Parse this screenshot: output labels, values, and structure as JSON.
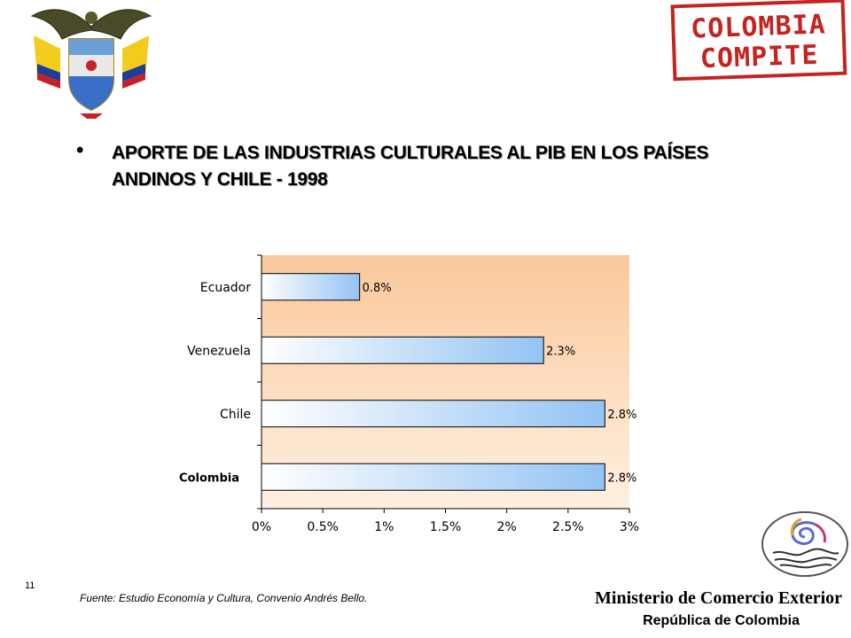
{
  "header": {
    "bullet": "•",
    "stamp_line1": "COLOMBIA",
    "stamp_line2": "COMPITE"
  },
  "slide": {
    "title_line1": "APORTE DE LAS INDUSTRIAS CULTURALES AL PIB EN LOS PAÍSES",
    "title_line2": "ANDINOS Y CHILE - 1998",
    "number": "11",
    "source": "Fuente: Estudio Economía y Cultura, Convenio Andrés Bello."
  },
  "footer": {
    "ministry": "Ministerio de Comercio Exterior",
    "country": "República de Colombia"
  },
  "chart_data": {
    "type": "bar",
    "orientation": "horizontal",
    "categories": [
      "Ecuador",
      "Venezuela",
      "Chile",
      "Colombia"
    ],
    "values": [
      0.8,
      2.3,
      2.8,
      2.8
    ],
    "data_labels": [
      "0.8%",
      "2.3%",
      "2.8%",
      "2.8%"
    ],
    "xlim": [
      0,
      3
    ],
    "xticks": [
      0,
      0.5,
      1,
      1.5,
      2,
      2.5,
      3
    ],
    "xtick_labels": [
      "0%",
      "0.5%",
      "1%",
      "1.5%",
      "2%",
      "2.5%",
      "3%"
    ],
    "highlight_category": "Colombia",
    "grid": false,
    "legend": "none",
    "colors": {
      "bar_start": "#ffffff",
      "bar_end": "#93c3f3",
      "plot_bg_top": "#fac89b",
      "plot_bg_bottom": "#fff0e0"
    }
  }
}
